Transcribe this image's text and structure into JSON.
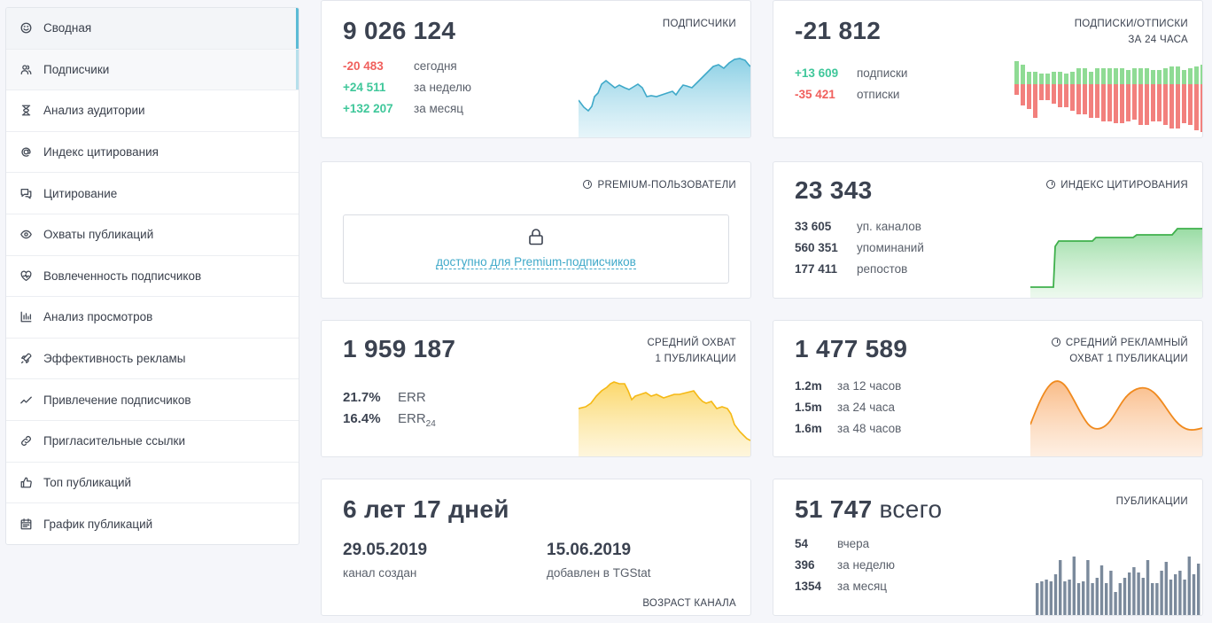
{
  "sidebar": {
    "items": [
      {
        "label": "Сводная",
        "icon": "smiley-icon"
      },
      {
        "label": "Подписчики",
        "icon": "users-icon"
      },
      {
        "label": "Анализ аудитории",
        "icon": "hourglass-icon"
      },
      {
        "label": "Индекс цитирования",
        "icon": "at-icon"
      },
      {
        "label": "Цитирование",
        "icon": "quote-icon"
      },
      {
        "label": "Охваты публикаций",
        "icon": "eye-icon"
      },
      {
        "label": "Вовлеченность подписчиков",
        "icon": "heart-icon"
      },
      {
        "label": "Анализ просмотров",
        "icon": "bar-chart-icon"
      },
      {
        "label": "Эффективность рекламы",
        "icon": "rocket-icon"
      },
      {
        "label": "Привлечение подписчиков",
        "icon": "trend-icon"
      },
      {
        "label": "Пригласительные ссылки",
        "icon": "link-icon"
      },
      {
        "label": "Топ публикаций",
        "icon": "thumbs-up-icon"
      },
      {
        "label": "График публикаций",
        "icon": "calendar-icon"
      }
    ]
  },
  "subscribers": {
    "title": "ПОДПИСЧИКИ",
    "total": "9 026 124",
    "rows": [
      {
        "value": "-20 483",
        "label": "сегодня"
      },
      {
        "value": "+24 511",
        "label": "за неделю"
      },
      {
        "value": "+132 207",
        "label": "за месяц"
      }
    ],
    "colors": {
      "negative": "#f0605d",
      "positive": "#3fc79a",
      "chart": "#5bbbd6"
    }
  },
  "subs_unsubs": {
    "title_line1": "ПОДПИСКИ/ОТПИСКИ",
    "title_line2": "ЗА 24 ЧАСА",
    "total": "-21 812",
    "rows": [
      {
        "value": "+13 609",
        "label": "подписки"
      },
      {
        "value": "-35 421",
        "label": "отписки"
      }
    ]
  },
  "premium": {
    "title": "PREMIUM-ПОЛЬЗОВАТЕЛИ",
    "link": "доступно для Premium-подписчиков"
  },
  "citation": {
    "title": "ИНДЕКС ЦИТИРОВАНИЯ",
    "total": "23 343",
    "rows": [
      {
        "value": "33 605",
        "label": "уп. каналов"
      },
      {
        "value": "560 351",
        "label": "упоминаний"
      },
      {
        "value": "177 411",
        "label": "репостов"
      }
    ]
  },
  "avg_reach": {
    "title_line1": "СРЕДНИЙ ОХВАТ",
    "title_line2": "1 ПУБЛИКАЦИИ",
    "total": "1 959 187",
    "err_value": "21.7%",
    "err_label": "ERR",
    "err24_value": "16.4%",
    "err24_label": "ERR",
    "err24_sub": "24"
  },
  "ad_reach": {
    "title_line1": "СРЕДНИЙ РЕКЛАМНЫЙ",
    "title_line2": "ОХВАТ 1 ПУБЛИКАЦИИ",
    "total": "1 477 589",
    "rows": [
      {
        "value": "1.2m",
        "label": "за 12 часов"
      },
      {
        "value": "1.5m",
        "label": "за 24 часа"
      },
      {
        "value": "1.6m",
        "label": "за 48 часов"
      }
    ]
  },
  "age": {
    "total": "6 лет 17 дней",
    "created_date": "29.05.2019",
    "created_label": "канал создан",
    "added_date": "15.06.2019",
    "added_label": "добавлен в TGStat",
    "title": "ВОЗРАСТ КАНАЛА"
  },
  "posts": {
    "title": "ПУБЛИКАЦИИ",
    "total_num": "51 747",
    "total_word": "всего",
    "rows": [
      {
        "value": "54",
        "label": "вчера"
      },
      {
        "value": "396",
        "label": "за неделю"
      },
      {
        "value": "1354",
        "label": "за месяц"
      }
    ]
  }
}
